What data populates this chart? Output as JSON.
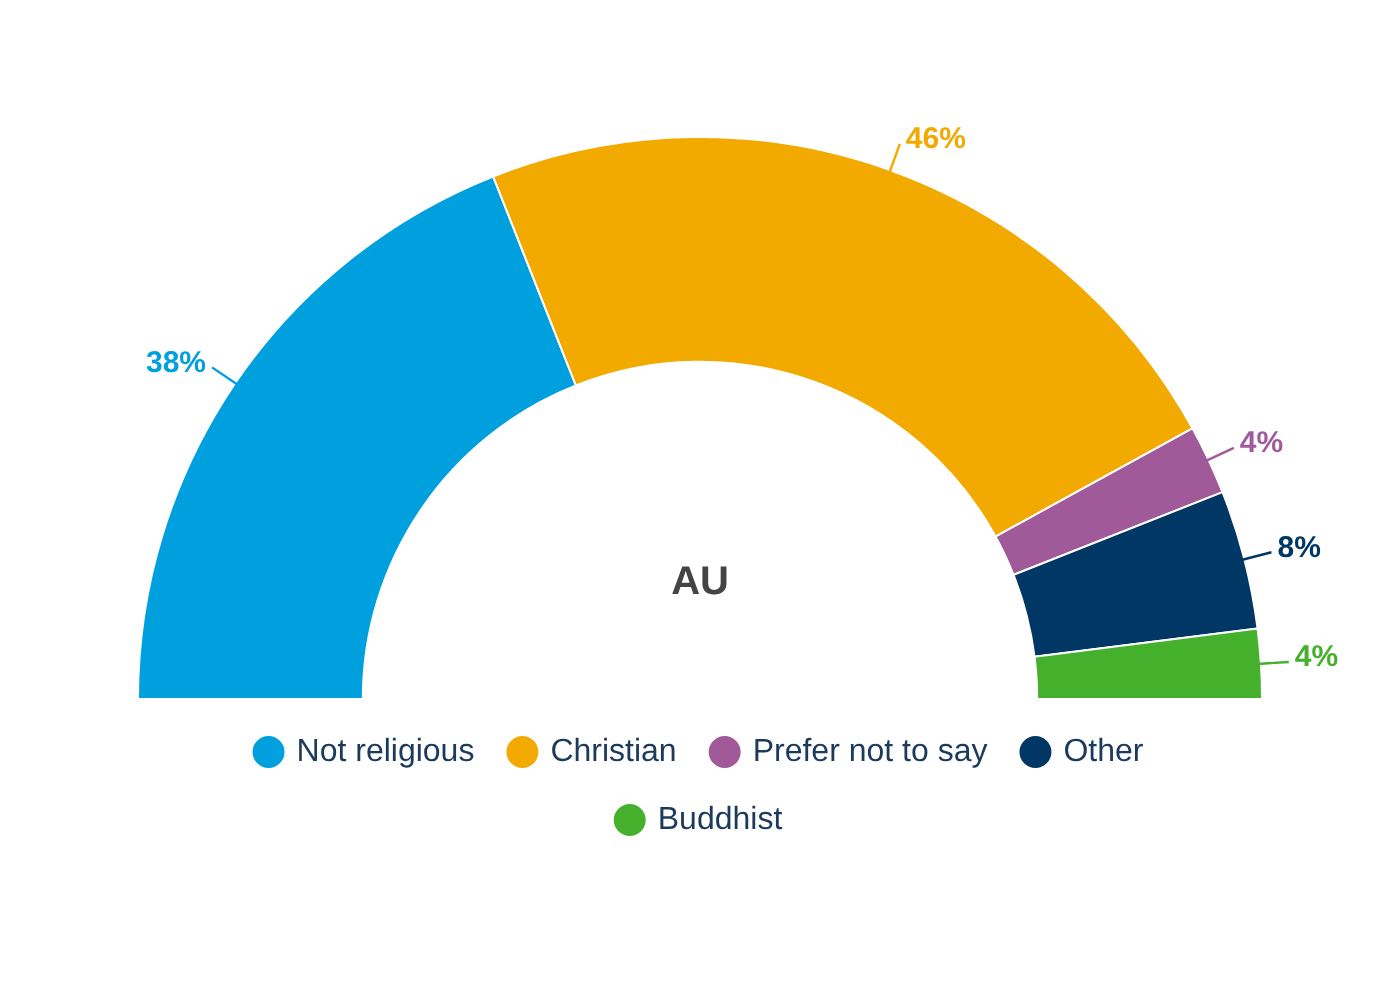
{
  "chart_data": {
    "type": "donut",
    "categories": [
      "Not religious",
      "Christian",
      "Prefer not to say",
      "Other",
      "Buddhist"
    ],
    "values": [
      38,
      46,
      4,
      8,
      4
    ],
    "colors": [
      "#00a0df",
      "#f2aa00",
      "#a05a9a",
      "#003764",
      "#44b02c"
    ],
    "value_labels": [
      "38%",
      "46%",
      "4%",
      "8%",
      "4%"
    ],
    "annotations": [
      "AU"
    ],
    "legend": "bottom"
  }
}
